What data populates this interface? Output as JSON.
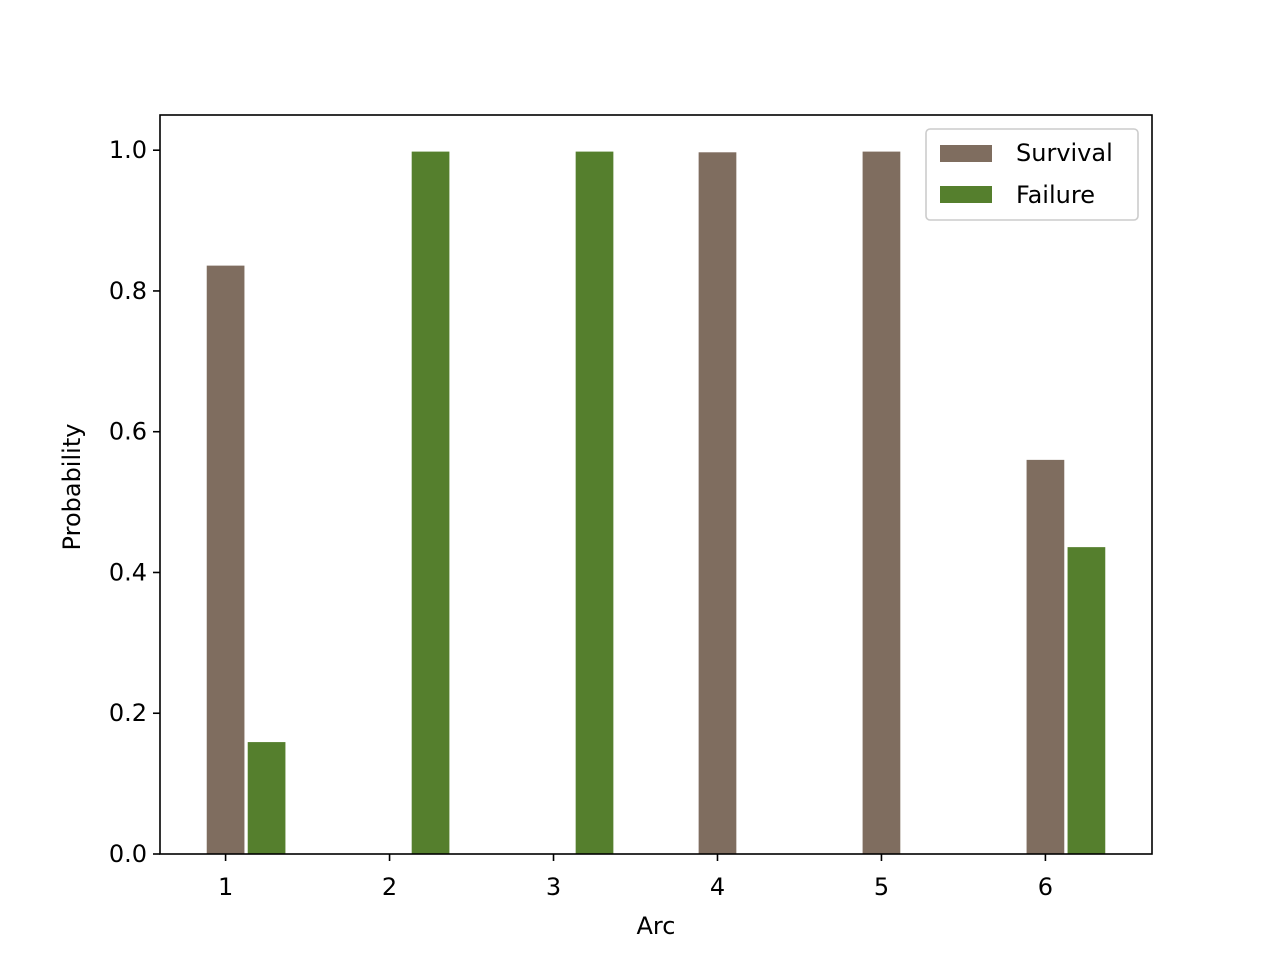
{
  "chart_data": {
    "type": "bar",
    "title": "",
    "xlabel": "Arc",
    "ylabel": "Probability",
    "categories": [
      "1",
      "2",
      "3",
      "4",
      "5",
      "6"
    ],
    "x": [
      1,
      2,
      3,
      4,
      5,
      6
    ],
    "ylim": [
      0,
      1.05
    ],
    "xlim": [
      0.6,
      6.65
    ],
    "yticks": [
      0.0,
      0.2,
      0.4,
      0.6,
      0.8,
      1.0
    ],
    "ytick_labels": [
      "0.0",
      "0.2",
      "0.4",
      "0.6",
      "0.8",
      "1.0"
    ],
    "series": [
      {
        "name": "Survival",
        "color": "#7f6d5f",
        "values": [
          0.836,
          0.0,
          0.0,
          0.997,
          0.998,
          0.56
        ]
      },
      {
        "name": "Failure",
        "color": "#557f2d",
        "values": [
          0.159,
          0.998,
          0.998,
          0.0,
          0.0,
          0.436
        ]
      }
    ],
    "grid": false,
    "legend_position": "top-right"
  }
}
